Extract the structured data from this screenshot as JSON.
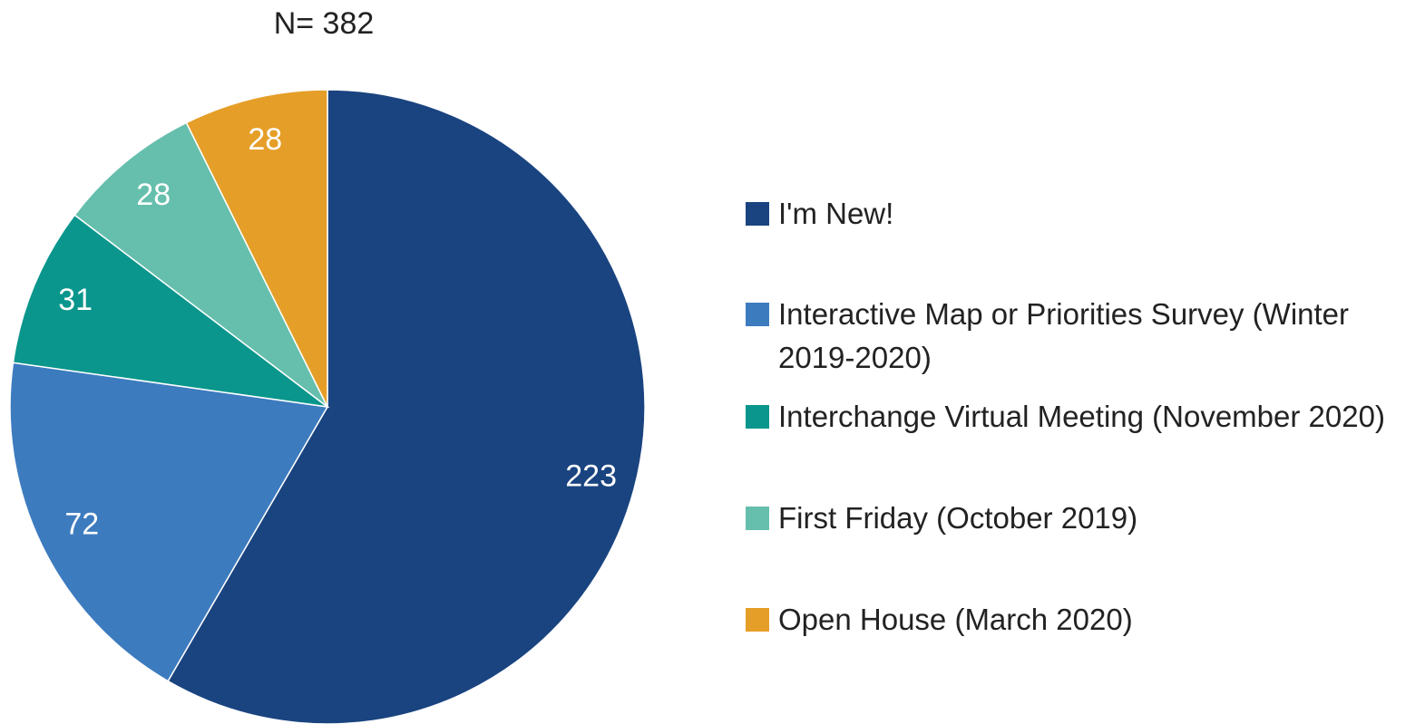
{
  "chart_data": {
    "type": "pie",
    "title": "N= 382",
    "categories": [
      "I'm New!",
      "Interactive Map or Priorities Survey (Winter 2019-2020)",
      "Interchange Virtual Meeting (November 2020)",
      "First Friday (October 2019)",
      "Open House (March 2020)"
    ],
    "values": [
      223,
      72,
      31,
      28,
      28
    ],
    "colors": [
      "#1a4480",
      "#3d7bbf",
      "#0a968c",
      "#65bfac",
      "#e59e28"
    ],
    "legend": "right"
  }
}
